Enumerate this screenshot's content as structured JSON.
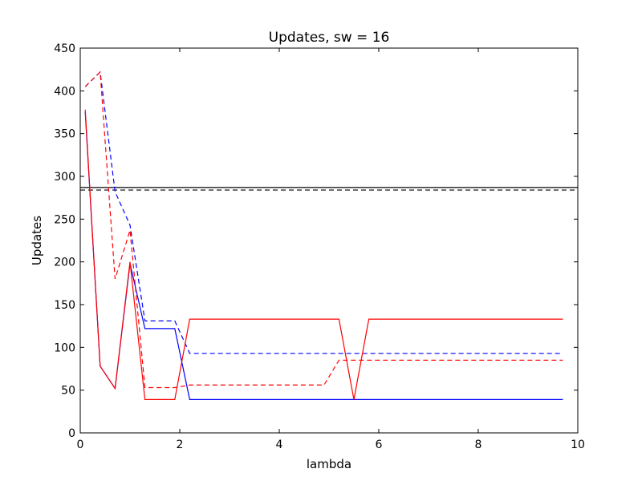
{
  "chart_data": {
    "type": "line",
    "title": "Updates, sw = 16",
    "xlabel": "lambda",
    "ylabel": "Updates",
    "xlim": [
      0,
      10
    ],
    "ylim": [
      0,
      450
    ],
    "xticks": [
      0,
      2,
      4,
      6,
      8,
      10
    ],
    "yticks": [
      0,
      50,
      100,
      150,
      200,
      250,
      300,
      350,
      400,
      450
    ],
    "grid": false,
    "legend": "none",
    "hlines": [
      {
        "y": 287,
        "color": "#000000",
        "style": "solid"
      },
      {
        "y": 284,
        "color": "#000000",
        "style": "dashed"
      }
    ],
    "series": [
      {
        "color": "#0000ff",
        "style": "solid",
        "x": [
          0.1,
          0.4,
          0.7,
          1.0,
          1.3,
          1.6,
          1.9,
          2.2,
          2.5,
          2.8,
          3.1,
          3.4,
          3.7,
          4.0,
          4.3,
          4.6,
          4.9,
          5.2,
          5.5,
          5.8,
          6.1,
          6.4,
          6.7,
          7.0,
          7.3,
          7.6,
          7.9,
          8.2,
          8.5,
          8.8,
          9.1,
          9.4,
          9.7
        ],
        "y": [
          375,
          78,
          52,
          198,
          122,
          122,
          122,
          39,
          39,
          39,
          39,
          39,
          39,
          39,
          39,
          39,
          39,
          39,
          39,
          39,
          39,
          39,
          39,
          39,
          39,
          39,
          39,
          39,
          39,
          39,
          39,
          39,
          39
        ]
      },
      {
        "color": "#0000ff",
        "style": "dashed",
        "x": [
          0.1,
          0.4,
          0.7,
          1.0,
          1.3,
          1.6,
          1.9,
          2.2,
          2.5,
          2.8,
          3.1,
          3.4,
          3.7,
          4.0,
          4.3,
          4.6,
          4.9,
          5.2,
          5.5,
          5.8,
          6.1,
          6.4,
          6.7,
          7.0,
          7.3,
          7.6,
          7.9,
          8.2,
          8.5,
          8.8,
          9.1,
          9.4,
          9.7
        ],
        "y": [
          405,
          422,
          282,
          243,
          131,
          131,
          131,
          93,
          93,
          93,
          93,
          93,
          93,
          93,
          93,
          93,
          93,
          93,
          93,
          93,
          93,
          93,
          93,
          93,
          93,
          93,
          93,
          93,
          93,
          93,
          93,
          93,
          93
        ]
      },
      {
        "color": "#ff0000",
        "style": "solid",
        "x": [
          0.1,
          0.4,
          0.7,
          1.0,
          1.3,
          1.6,
          1.9,
          2.2,
          2.5,
          2.8,
          3.1,
          3.4,
          3.7,
          4.0,
          4.3,
          4.6,
          4.9,
          5.2,
          5.5,
          5.8,
          6.1,
          6.4,
          6.7,
          7.0,
          7.3,
          7.6,
          7.9,
          8.2,
          8.5,
          8.8,
          9.1,
          9.4,
          9.7
        ],
        "y": [
          378,
          78,
          52,
          200,
          39,
          39,
          39,
          133,
          133,
          133,
          133,
          133,
          133,
          133,
          133,
          133,
          133,
          133,
          39,
          133,
          133,
          133,
          133,
          133,
          133,
          133,
          133,
          133,
          133,
          133,
          133,
          133,
          133
        ]
      },
      {
        "color": "#ff0000",
        "style": "dashed",
        "x": [
          0.1,
          0.4,
          0.7,
          1.0,
          1.3,
          1.6,
          1.9,
          2.2,
          2.5,
          2.8,
          3.1,
          3.4,
          3.7,
          4.0,
          4.3,
          4.6,
          4.9,
          5.2,
          5.5,
          5.8,
          6.1,
          6.4,
          6.7,
          7.0,
          7.3,
          7.6,
          7.9,
          8.2,
          8.5,
          8.8,
          9.1,
          9.4,
          9.7
        ],
        "y": [
          405,
          422,
          180,
          237,
          53,
          53,
          53,
          56,
          56,
          56,
          56,
          56,
          56,
          56,
          56,
          56,
          56,
          85,
          85,
          85,
          85,
          85,
          85,
          85,
          85,
          85,
          85,
          85,
          85,
          85,
          85,
          85,
          85
        ]
      }
    ]
  }
}
